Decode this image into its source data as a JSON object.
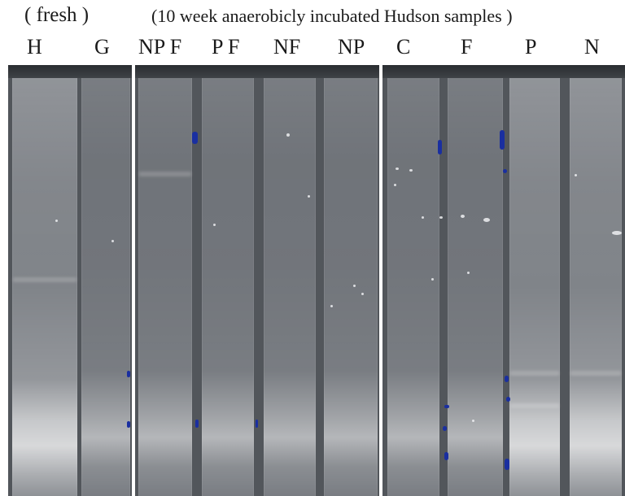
{
  "header": {
    "fresh": "( fresh )",
    "incubated": "(10  week anaerobicly incubated Hudson samples )"
  },
  "lane_labels": {
    "h": "H",
    "g": "G",
    "np_f": "NP F",
    "p_f": "P F",
    "nf": "NF",
    "np": "NP",
    "c": "C",
    "f": "F",
    "p": "P",
    "n": "N"
  }
}
